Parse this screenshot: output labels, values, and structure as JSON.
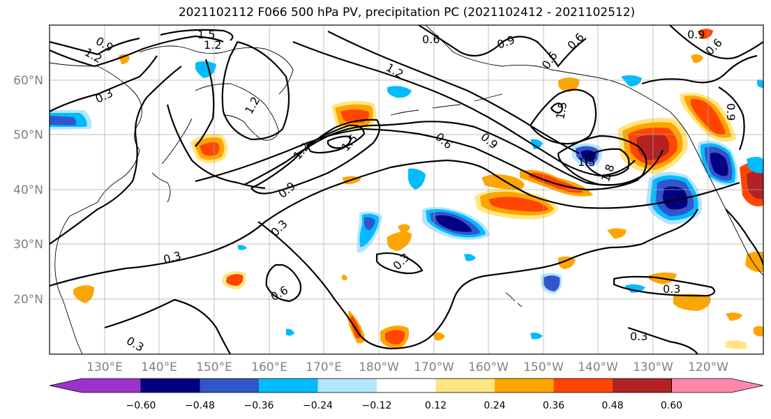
{
  "title": "2021102112 F066 500 hPa PV, precipitation PC (2021102412 - 2021102512)",
  "longitude_labels": [
    "130°E",
    "140°E",
    "150°E",
    "160°E",
    "170°E",
    "180°W",
    "170°W",
    "160°W",
    "150°W",
    "140°W",
    "130°W",
    "120°W"
  ],
  "latitude_labels": [
    "60°N",
    "50°N",
    "40°N",
    "30°N",
    "20°N"
  ],
  "contour_labels": [
    "0.9",
    "1.2",
    "1.5",
    "1.2",
    "0.3",
    "1.2",
    "0.6",
    "0.9",
    "1.2",
    "0.6",
    "0.9",
    "0.6",
    "0.6",
    "0.9",
    "0.6",
    "1.2",
    "1.5",
    "0.9",
    "1.5",
    "1.5",
    "1.8",
    "0.9",
    "0.3",
    "0.3",
    "0.3",
    "0.6",
    "0.3",
    "0.3",
    "0.3"
  ],
  "colorbar": {
    "tick_labels": [
      "−0.60",
      "−0.48",
      "−0.36",
      "−0.24",
      "−0.12",
      "0.12",
      "0.24",
      "0.36",
      "0.48",
      "0.60"
    ],
    "colors": [
      "#9933cc",
      "#000080",
      "#3355cc",
      "#00bbff",
      "#b3e5ff",
      "#ffffff",
      "#ffe680",
      "#ffa500",
      "#ff4500",
      "#b22222",
      "#ff88aa"
    ]
  },
  "shading_colors": {
    "neg_strong": "#000080",
    "neg_mid": "#3355cc",
    "neg_weak": "#00bbff",
    "neg_faint": "#b3e5ff",
    "pos_faint": "#ffe680",
    "pos_weak": "#ffa500",
    "pos_mid": "#ff4500",
    "pos_strong": "#b22222"
  }
}
